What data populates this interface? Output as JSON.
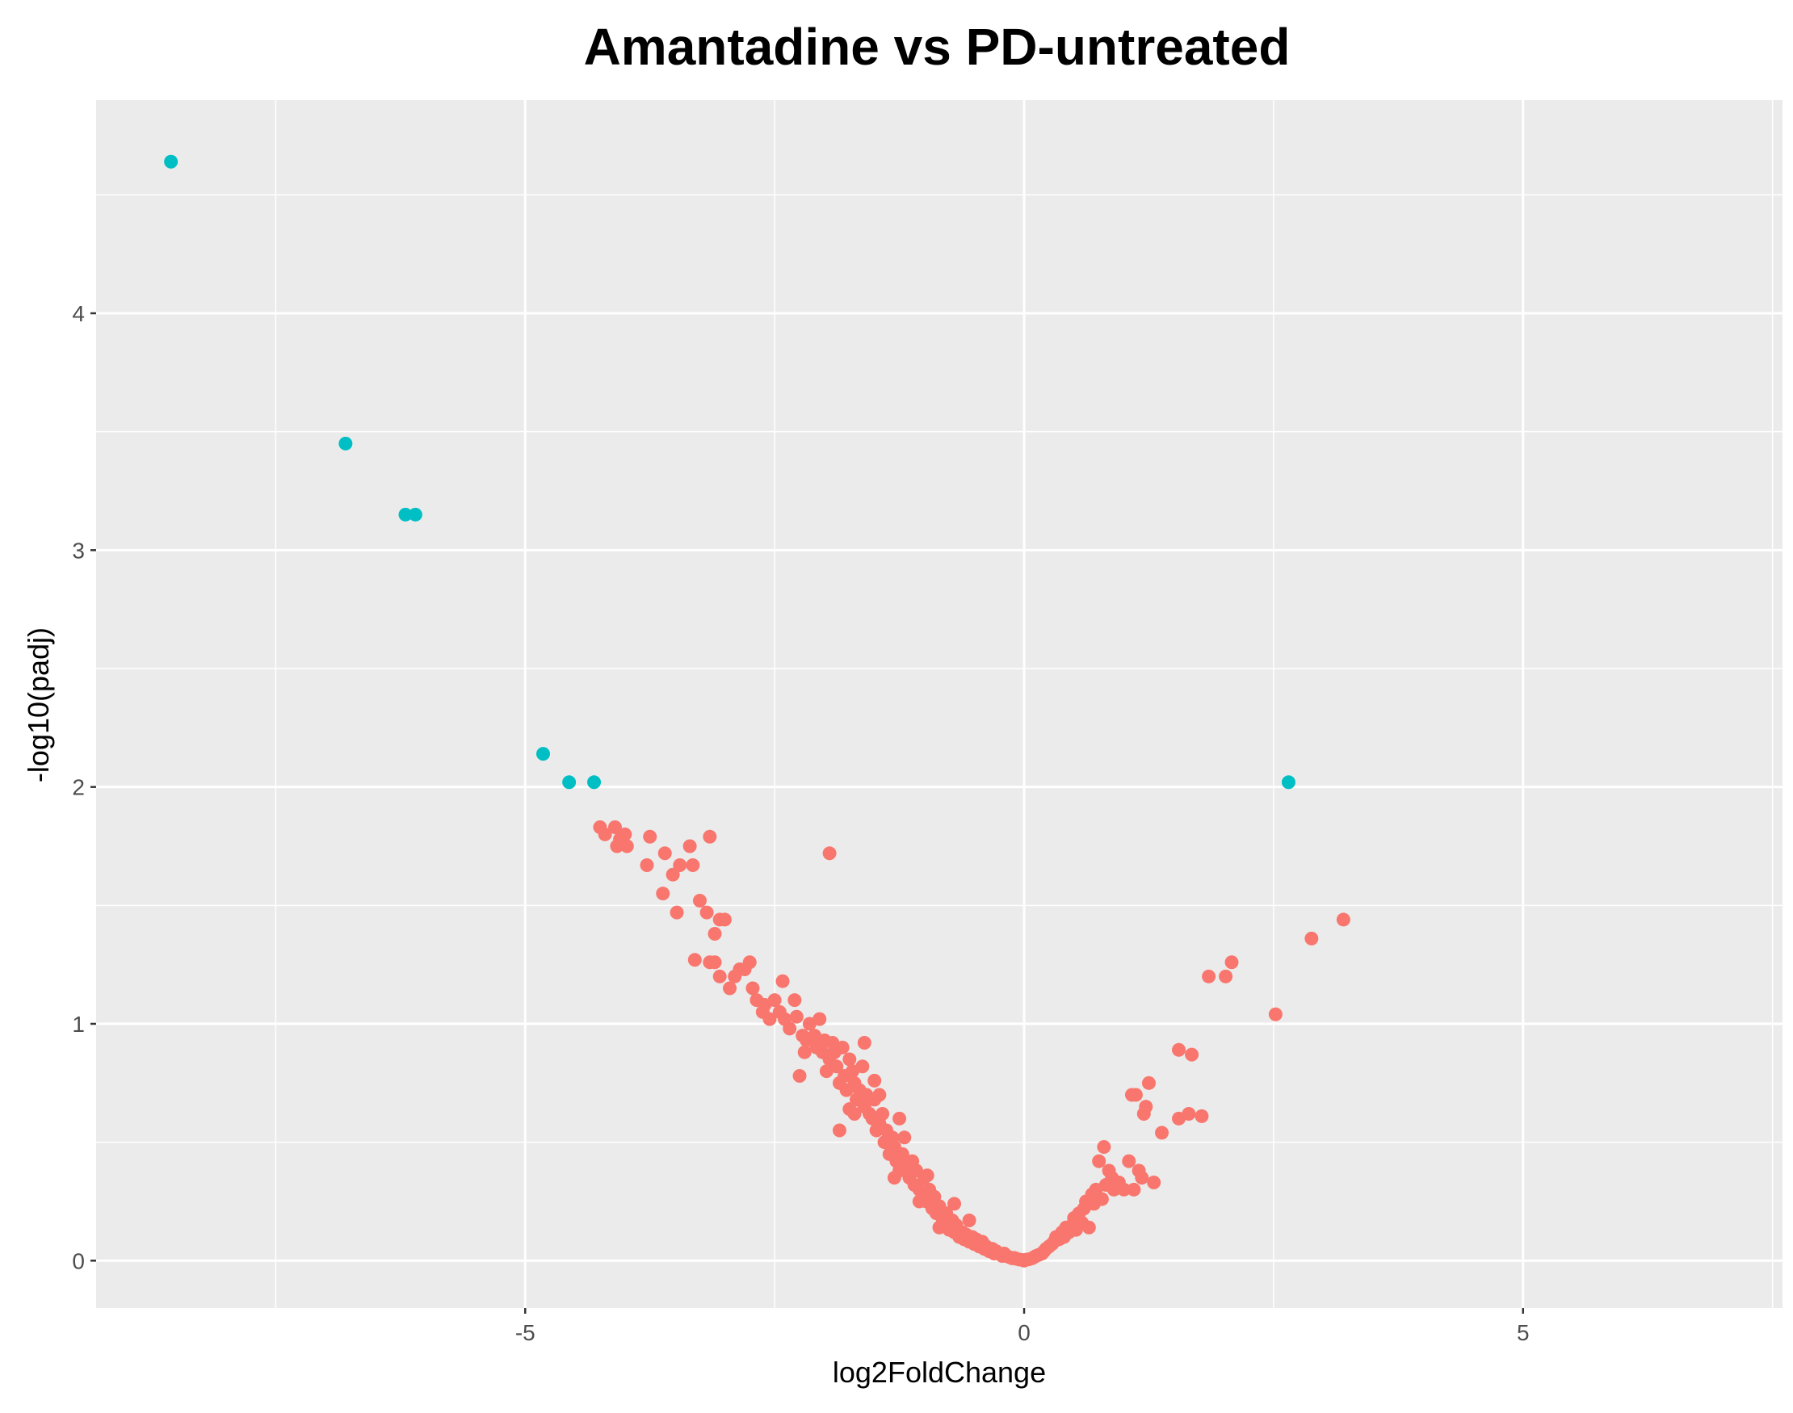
{
  "chart_data": {
    "type": "scatter",
    "title": "Amantadine vs PD-untreated",
    "xlabel": "log2FoldChange",
    "ylabel": "-log10(padj)",
    "xlim": [
      -9.3,
      7.6
    ],
    "ylim": [
      -0.2,
      4.9
    ],
    "x_ticks": [
      -5,
      0,
      5
    ],
    "x_tick_labels": [
      "-5",
      "0",
      "5"
    ],
    "y_ticks": [
      0,
      1,
      2,
      3,
      4
    ],
    "y_tick_labels": [
      "0",
      "1",
      "2",
      "3",
      "4"
    ],
    "grid": true,
    "legend": "none",
    "colors": {
      "panel_bg": "#ebebeb",
      "grid": "#ffffff",
      "significant": "#00bfc4",
      "not_significant": "#f8766d"
    },
    "series": [
      {
        "color": "#00bfc4",
        "points": [
          [
            -8.55,
            4.64
          ],
          [
            -6.8,
            3.45
          ],
          [
            -6.2,
            3.15
          ],
          [
            -6.1,
            3.15
          ],
          [
            -4.82,
            2.14
          ],
          [
            -4.56,
            2.02
          ],
          [
            -4.31,
            2.02
          ],
          [
            2.65,
            2.02
          ]
        ]
      },
      {
        "color": "#f8766d",
        "points": [
          [
            -4.25,
            1.83
          ],
          [
            -4.2,
            1.8
          ],
          [
            -4.1,
            1.83
          ],
          [
            -4.05,
            1.78
          ],
          [
            -4.0,
            1.8
          ],
          [
            -4.08,
            1.75
          ],
          [
            -3.98,
            1.75
          ],
          [
            -3.75,
            1.79
          ],
          [
            -3.6,
            1.72
          ],
          [
            -3.52,
            1.63
          ],
          [
            -3.45,
            1.67
          ],
          [
            -3.35,
            1.75
          ],
          [
            -3.32,
            1.67
          ],
          [
            -3.15,
            1.79
          ],
          [
            -3.78,
            1.67
          ],
          [
            -3.62,
            1.55
          ],
          [
            -3.48,
            1.47
          ],
          [
            -3.25,
            1.52
          ],
          [
            -3.18,
            1.47
          ],
          [
            -3.1,
            1.38
          ],
          [
            -3.05,
            1.44
          ],
          [
            -3.0,
            1.44
          ],
          [
            -3.3,
            1.27
          ],
          [
            -3.15,
            1.26
          ],
          [
            -3.1,
            1.26
          ],
          [
            -3.05,
            1.2
          ],
          [
            -2.95,
            1.15
          ],
          [
            -2.9,
            1.2
          ],
          [
            -2.85,
            1.23
          ],
          [
            -2.8,
            1.23
          ],
          [
            -2.75,
            1.26
          ],
          [
            -2.72,
            1.15
          ],
          [
            -2.68,
            1.1
          ],
          [
            -2.62,
            1.05
          ],
          [
            -2.6,
            1.08
          ],
          [
            -2.55,
            1.02
          ],
          [
            -2.5,
            1.1
          ],
          [
            -2.45,
            1.05
          ],
          [
            -2.42,
            1.18
          ],
          [
            -2.4,
            1.02
          ],
          [
            -2.35,
            0.98
          ],
          [
            -2.3,
            1.1
          ],
          [
            -2.28,
            1.03
          ],
          [
            -2.22,
            0.95
          ],
          [
            -2.2,
            0.88
          ],
          [
            -2.18,
            0.93
          ],
          [
            -2.15,
            1.0
          ],
          [
            -2.1,
            0.95
          ],
          [
            -2.08,
            0.9
          ],
          [
            -2.05,
            1.02
          ],
          [
            -2.02,
            0.88
          ],
          [
            -2.0,
            0.93
          ],
          [
            -1.98,
            0.8
          ],
          [
            -1.95,
            0.85
          ],
          [
            -1.92,
            0.92
          ],
          [
            -1.9,
            0.88
          ],
          [
            -1.88,
            0.82
          ],
          [
            -1.85,
            0.75
          ],
          [
            -1.82,
            0.9
          ],
          [
            -1.8,
            0.78
          ],
          [
            -1.78,
            0.72
          ],
          [
            -1.75,
            0.85
          ],
          [
            -1.72,
            0.8
          ],
          [
            -1.7,
            0.75
          ],
          [
            -1.68,
            0.68
          ],
          [
            -1.65,
            0.72
          ],
          [
            -1.62,
            0.82
          ],
          [
            -1.6,
            0.65
          ],
          [
            -1.58,
            0.7
          ],
          [
            -1.55,
            0.62
          ],
          [
            -1.52,
            0.6
          ],
          [
            -1.5,
            0.68
          ],
          [
            -1.48,
            0.55
          ],
          [
            -1.45,
            0.58
          ],
          [
            -1.42,
            0.62
          ],
          [
            -1.4,
            0.5
          ],
          [
            -1.38,
            0.55
          ],
          [
            -1.35,
            0.45
          ],
          [
            -1.32,
            0.52
          ],
          [
            -1.3,
            0.48
          ],
          [
            -1.28,
            0.42
          ],
          [
            -1.25,
            0.38
          ],
          [
            -1.22,
            0.45
          ],
          [
            -1.2,
            0.52
          ],
          [
            -1.18,
            0.4
          ],
          [
            -1.15,
            0.35
          ],
          [
            -1.12,
            0.42
          ],
          [
            -1.1,
            0.32
          ],
          [
            -1.08,
            0.38
          ],
          [
            -1.05,
            0.3
          ],
          [
            -1.02,
            0.28
          ],
          [
            -1.0,
            0.35
          ],
          [
            -0.98,
            0.25
          ],
          [
            -0.95,
            0.3
          ],
          [
            -0.92,
            0.22
          ],
          [
            -0.9,
            0.27
          ],
          [
            -0.88,
            0.2
          ],
          [
            -0.85,
            0.23
          ],
          [
            -0.82,
            0.18
          ],
          [
            -0.8,
            0.15
          ],
          [
            -0.78,
            0.2
          ],
          [
            -0.75,
            0.13
          ],
          [
            -0.72,
            0.17
          ],
          [
            -0.7,
            0.12
          ],
          [
            -0.68,
            0.15
          ],
          [
            -0.65,
            0.1
          ],
          [
            -0.62,
            0.12
          ],
          [
            -0.6,
            0.09
          ],
          [
            -0.58,
            0.11
          ],
          [
            -0.55,
            0.08
          ],
          [
            -0.52,
            0.1
          ],
          [
            -0.5,
            0.07
          ],
          [
            -0.48,
            0.09
          ],
          [
            -0.45,
            0.06
          ],
          [
            -0.42,
            0.08
          ],
          [
            -0.4,
            0.05
          ],
          [
            -0.38,
            0.06
          ],
          [
            -0.35,
            0.04
          ],
          [
            -0.32,
            0.05
          ],
          [
            -0.3,
            0.03
          ],
          [
            -0.28,
            0.04
          ],
          [
            -0.25,
            0.03
          ],
          [
            -0.22,
            0.02
          ],
          [
            -0.2,
            0.03
          ],
          [
            -0.18,
            0.02
          ],
          [
            -0.15,
            0.015
          ],
          [
            -0.12,
            0.01
          ],
          [
            -0.1,
            0.012
          ],
          [
            -0.08,
            0.008
          ],
          [
            -0.05,
            0.005
          ],
          [
            -0.02,
            0.003
          ],
          [
            0.0,
            0.0
          ],
          [
            -1.95,
            1.72
          ],
          [
            -1.85,
            0.55
          ],
          [
            -1.7,
            0.62
          ],
          [
            -1.3,
            0.35
          ],
          [
            -1.05,
            0.25
          ],
          [
            -2.25,
            0.78
          ],
          [
            -1.6,
            0.92
          ],
          [
            -1.5,
            0.76
          ],
          [
            -1.75,
            0.64
          ],
          [
            -1.45,
            0.7
          ],
          [
            -1.25,
            0.6
          ],
          [
            -0.97,
            0.36
          ],
          [
            -0.85,
            0.14
          ],
          [
            -0.7,
            0.24
          ],
          [
            -0.55,
            0.17
          ],
          [
            0.02,
            0.004
          ],
          [
            0.05,
            0.006
          ],
          [
            0.08,
            0.01
          ],
          [
            0.1,
            0.015
          ],
          [
            0.12,
            0.02
          ],
          [
            0.15,
            0.025
          ],
          [
            0.18,
            0.03
          ],
          [
            0.2,
            0.04
          ],
          [
            0.22,
            0.05
          ],
          [
            0.25,
            0.06
          ],
          [
            0.28,
            0.07
          ],
          [
            0.3,
            0.08
          ],
          [
            0.32,
            0.1
          ],
          [
            0.35,
            0.09
          ],
          [
            0.38,
            0.12
          ],
          [
            0.4,
            0.1
          ],
          [
            0.42,
            0.14
          ],
          [
            0.45,
            0.12
          ],
          [
            0.48,
            0.15
          ],
          [
            0.5,
            0.18
          ],
          [
            0.52,
            0.13
          ],
          [
            0.55,
            0.2
          ],
          [
            0.58,
            0.16
          ],
          [
            0.6,
            0.22
          ],
          [
            0.62,
            0.25
          ],
          [
            0.65,
            0.14
          ],
          [
            0.68,
            0.28
          ],
          [
            0.7,
            0.24
          ],
          [
            0.72,
            0.3
          ],
          [
            0.75,
            0.42
          ],
          [
            0.78,
            0.26
          ],
          [
            0.8,
            0.48
          ],
          [
            0.82,
            0.32
          ],
          [
            0.85,
            0.38
          ],
          [
            0.88,
            0.35
          ],
          [
            0.9,
            0.3
          ],
          [
            0.95,
            0.33
          ],
          [
            1.0,
            0.3
          ],
          [
            1.05,
            0.42
          ],
          [
            1.08,
            0.7
          ],
          [
            1.1,
            0.3
          ],
          [
            1.12,
            0.7
          ],
          [
            1.15,
            0.38
          ],
          [
            1.18,
            0.35
          ],
          [
            1.2,
            0.62
          ],
          [
            1.22,
            0.65
          ],
          [
            1.25,
            0.75
          ],
          [
            1.3,
            0.33
          ],
          [
            1.38,
            0.54
          ],
          [
            1.55,
            0.89
          ],
          [
            1.55,
            0.6
          ],
          [
            1.65,
            0.62
          ],
          [
            1.68,
            0.87
          ],
          [
            1.78,
            0.61
          ],
          [
            1.85,
            1.2
          ],
          [
            2.02,
            1.2
          ],
          [
            2.08,
            1.26
          ],
          [
            2.52,
            1.04
          ],
          [
            2.88,
            1.36
          ],
          [
            3.2,
            1.44
          ]
        ]
      }
    ]
  }
}
